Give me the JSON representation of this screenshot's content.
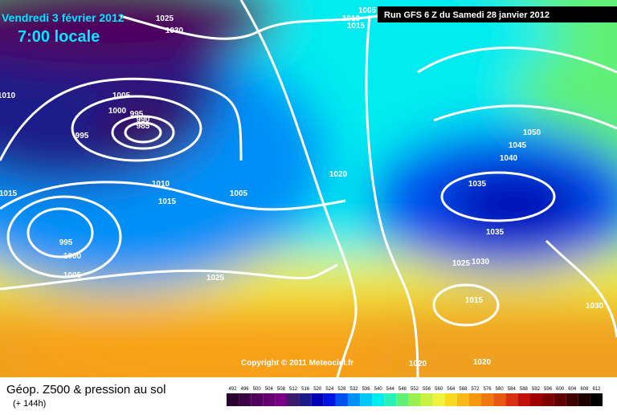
{
  "header": {
    "date": "Vendredi 3 février 2012",
    "time": "7:00 locale",
    "run": "Run GFS 6 Z du Samedi 28 janvier 2012"
  },
  "copyright": "Copyright © 2011 Meteociel.fr",
  "footer": {
    "title": "Géop. Z500 & pression au sol",
    "lead": "(+ 144h)"
  },
  "isobar_labels": [
    "1025",
    "1030",
    "1005",
    "1010",
    "1015",
    "1010",
    "1005",
    "1000",
    "995",
    "990",
    "985",
    "995",
    "1020",
    "1010",
    "1035",
    "1005",
    "1015",
    "1015",
    "995",
    "1035",
    "1000",
    "1025",
    "1030",
    "1005",
    "1025",
    "1015",
    "1030",
    "1020",
    "1020",
    "1050",
    "1045",
    "1040"
  ],
  "colorbar": {
    "labels": [
      492,
      496,
      500,
      504,
      508,
      512,
      516,
      520,
      524,
      528,
      532,
      536,
      540,
      544,
      548,
      552,
      556,
      560,
      564,
      568,
      572,
      576,
      580,
      584,
      588,
      592,
      596,
      600,
      604,
      608,
      612
    ],
    "colors": [
      "#2a0030",
      "#3c0046",
      "#50005c",
      "#640070",
      "#780084",
      "#3a1a6a",
      "#1a1a8a",
      "#0000b4",
      "#0014e0",
      "#0050f0",
      "#0090f8",
      "#00c8f8",
      "#00ecf0",
      "#28f0b8",
      "#60f078",
      "#98f050",
      "#c8f040",
      "#f0f040",
      "#f8d820",
      "#f8b818",
      "#f89810",
      "#f07810",
      "#e85810",
      "#d83010",
      "#c01008",
      "#a00000",
      "#800000",
      "#600000",
      "#400000",
      "#200000",
      "#000000"
    ]
  }
}
